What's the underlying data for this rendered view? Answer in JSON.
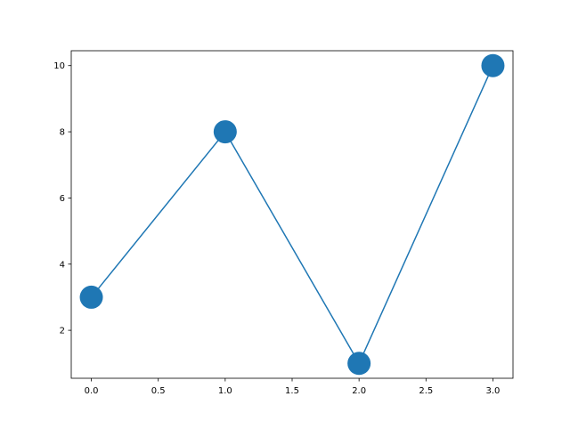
{
  "chart_data": {
    "type": "line",
    "x": [
      0,
      1,
      2,
      3
    ],
    "series": [
      {
        "values": [
          3,
          8,
          1,
          10
        ]
      }
    ],
    "xlim": [
      -0.15,
      3.15
    ],
    "ylim": [
      0.55,
      10.45
    ],
    "xticks": [
      "0.0",
      "0.5",
      "1.0",
      "1.5",
      "2.0",
      "2.5",
      "3.0"
    ],
    "yticks": [
      "2",
      "4",
      "6",
      "8",
      "10"
    ],
    "grid": false,
    "marker": "circle",
    "color": "#1f77b4",
    "title": "",
    "xlabel": "",
    "ylabel": ""
  }
}
